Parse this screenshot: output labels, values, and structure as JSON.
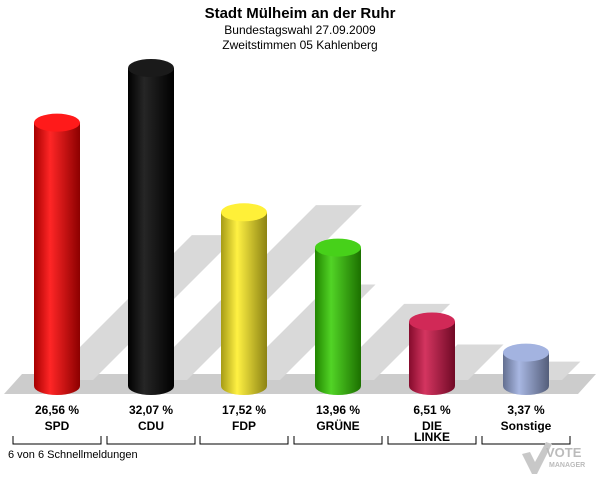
{
  "header": {
    "title": "Stadt Mülheim an der Ruhr",
    "subtitle1": "Bundestagswahl 27.09.2009",
    "subtitle2": "Zweitstimmen 05 Kahlenberg"
  },
  "footer": {
    "note": "6 von 6 Schnellmeldungen",
    "logo_text_1": "VOTE",
    "logo_text_2": "MANAGER"
  },
  "chart_data": {
    "type": "bar",
    "categories": [
      "SPD",
      "CDU",
      "FDP",
      "GRÜNE",
      "DIE LINKE",
      "Sonstige"
    ],
    "category_lines": [
      [
        "SPD"
      ],
      [
        "CDU"
      ],
      [
        "FDP"
      ],
      [
        "GRÜNE"
      ],
      [
        "DIE",
        "LINKE"
      ],
      [
        "Sonstige"
      ]
    ],
    "values": [
      26.56,
      32.07,
      17.52,
      13.96,
      6.51,
      3.37
    ],
    "value_labels": [
      "26,56 %",
      "32,07 %",
      "17,52 %",
      "13,96 %",
      "6,51 %",
      "3,37 %"
    ],
    "colors": [
      "#ff0000",
      "#000000",
      "#ffee22",
      "#33cc00",
      "#cc1144",
      "#99aadd"
    ],
    "unit": "%",
    "title": "Stadt Mülheim an der Ruhr"
  }
}
